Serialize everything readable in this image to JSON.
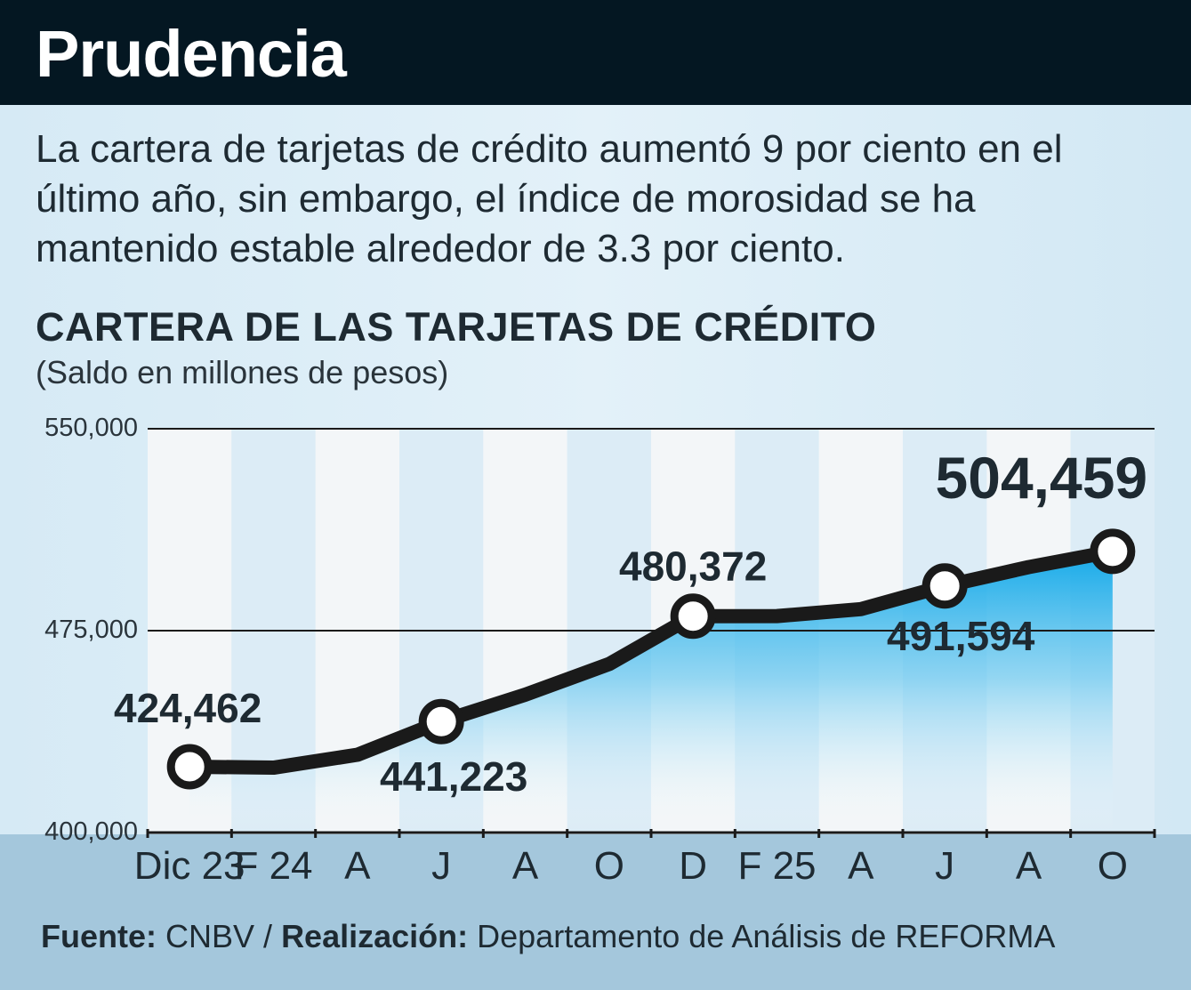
{
  "header": {
    "title": "Prudencia"
  },
  "description": "La cartera de tarjetas de crédito aumentó 9 por ciento en el último año, sin embargo, el índice de morosidad se ha mantenido estable alrededor de 3.3 por ciento.",
  "colors": {
    "header_bg": "#041722",
    "line": "#1a1a1a",
    "area": "#0aa6e8",
    "footer_bg": "#a4c7dc"
  },
  "chart_data": {
    "type": "line",
    "title": "CARTERA DE LAS TARJETAS DE CRÉDITO",
    "subtitle": "(Saldo en millones de pesos)",
    "categories": [
      "Dic 23",
      "F 24",
      "A",
      "J",
      "A",
      "O",
      "D",
      "F 25",
      "A",
      "J",
      "A",
      "O"
    ],
    "values": [
      424462,
      424100,
      428900,
      441223,
      451200,
      462600,
      480372,
      480400,
      483000,
      491594,
      498600,
      504459
    ],
    "ylim": [
      400000,
      550000
    ],
    "yticks": [
      "550,000",
      "475,000",
      "400,000"
    ],
    "ytick_values": [
      550000,
      475000,
      400000
    ],
    "labeled_points": [
      {
        "index": 0,
        "label": "424,462"
      },
      {
        "index": 3,
        "label": "441,223"
      },
      {
        "index": 6,
        "label": "480,372"
      },
      {
        "index": 9,
        "label": "491,594"
      },
      {
        "index": 11,
        "label": "504,459"
      }
    ]
  },
  "source": {
    "source_label": "Fuente:",
    "source_value": "CNBV /",
    "credit_label": "Realización:",
    "credit_value": "Departamento de Análisis de REFORMA"
  }
}
